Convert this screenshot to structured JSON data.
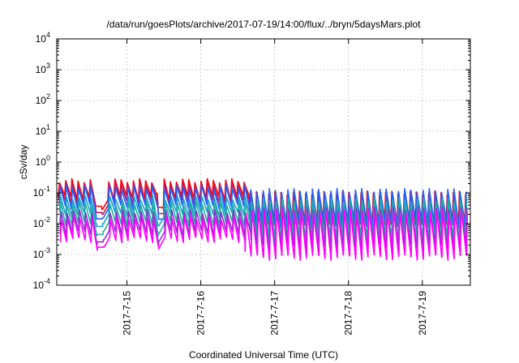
{
  "chart_data": {
    "type": "line",
    "title": "/data/run/goesPlots/archive/2017-07-19/14:00/flux/../bryn/5daysMars.plot",
    "xlabel": "Coordinated Universal Time (UTC)",
    "ylabel": "cSv/day",
    "yscale": "log",
    "ylim": [
      0.0001,
      10000
    ],
    "xlim_days": [
      14.05,
      19.65
    ],
    "x_month": "2017-07",
    "x_ticks": [
      {
        "value": 15,
        "label": "2017-7-15"
      },
      {
        "value": 16,
        "label": "2017-7-16"
      },
      {
        "value": 17,
        "label": "2017-7-17"
      },
      {
        "value": 18,
        "label": "2017-7-18"
      },
      {
        "value": 19,
        "label": "2017-7-19"
      }
    ],
    "y_ticks": [
      {
        "value": 0.0001,
        "base": "10",
        "exp": "-4"
      },
      {
        "value": 0.001,
        "base": "10",
        "exp": "-3"
      },
      {
        "value": 0.01,
        "base": "10",
        "exp": "-2"
      },
      {
        "value": 0.1,
        "base": "10",
        "exp": "-1"
      },
      {
        "value": 1,
        "base": "10",
        "exp": "0"
      },
      {
        "value": 10,
        "base": "10",
        "exp": "1"
      },
      {
        "value": 100,
        "base": "10",
        "exp": "2"
      },
      {
        "value": 1000,
        "base": "10",
        "exp": "3"
      },
      {
        "value": 10000,
        "base": "10",
        "exp": "4"
      }
    ],
    "grid": true,
    "legend": "none",
    "orbit_period_days": 0.0833,
    "gap_days": [
      {
        "start": 14.56,
        "end": 14.74
      },
      {
        "start": 15.42,
        "end": 15.5
      }
    ],
    "series": [
      {
        "color": "#ff0000",
        "peak_1": 0.25,
        "trough_1": 0.07,
        "peak_2": 0.1,
        "trough_2": 0.01
      },
      {
        "color": "#c01860",
        "peak_1": 0.2,
        "trough_1": 0.05,
        "peak_2": 0.09,
        "trough_2": 0.008
      },
      {
        "color": "#2060ff",
        "peak_1": 0.15,
        "trough_1": 0.035,
        "peak_2": 0.12,
        "trough_2": 0.01
      },
      {
        "color": "#20a0d0",
        "peak_1": 0.07,
        "trough_1": 0.02,
        "peak_2": 0.05,
        "trough_2": 0.004
      },
      {
        "color": "#20b0a0",
        "peak_1": 0.045,
        "trough_1": 0.01,
        "peak_2": 0.06,
        "trough_2": 0.003
      },
      {
        "color": "#9030d0",
        "peak_1": 0.025,
        "trough_1": 0.005,
        "peak_2": 0.03,
        "trough_2": 0.0018
      },
      {
        "color": "#ff00ff",
        "peak_1": 0.015,
        "trough_1": 0.003,
        "peak_2": 0.025,
        "trough_2": 0.0008
      }
    ]
  }
}
